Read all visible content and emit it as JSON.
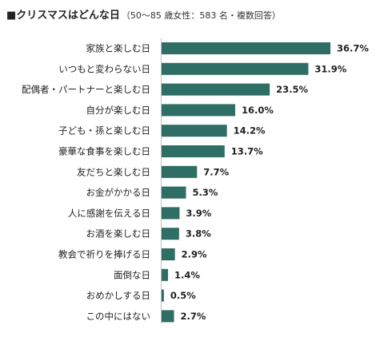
{
  "chart_data": {
    "type": "bar",
    "orientation": "horizontal",
    "title": "■クリスマスはどんな日",
    "subtitle": "（50〜85 歳女性：583 名・複数回答）",
    "categories": [
      "家族と楽しむ日",
      "いつもと変わらない日",
      "配偶者・パートナーと楽しむ日",
      "自分が楽しむ日",
      "子ども・孫と楽しむ日",
      "豪華な食事を楽しむ日",
      "友だちと楽しむ日",
      "お金がかかる日",
      "人に感謝を伝える日",
      "お酒を楽しむ日",
      "教会で祈りを捧げる日",
      "面倒な日",
      "おめかしする日",
      "この中にはない"
    ],
    "values": [
      36.7,
      31.9,
      23.5,
      16.0,
      14.2,
      13.7,
      7.7,
      5.3,
      3.9,
      3.8,
      2.9,
      1.4,
      0.5,
      2.7
    ],
    "value_labels": [
      "36.7%",
      "31.9%",
      "23.5%",
      "16.0%",
      "14.2%",
      "13.7%",
      "7.7%",
      "5.3%",
      "3.9%",
      "3.8%",
      "2.9%",
      "1.4%",
      "0.5%",
      "2.7%"
    ],
    "unit": "%",
    "bar_color": "#2e6e65",
    "grid": false,
    "legend": "none"
  }
}
